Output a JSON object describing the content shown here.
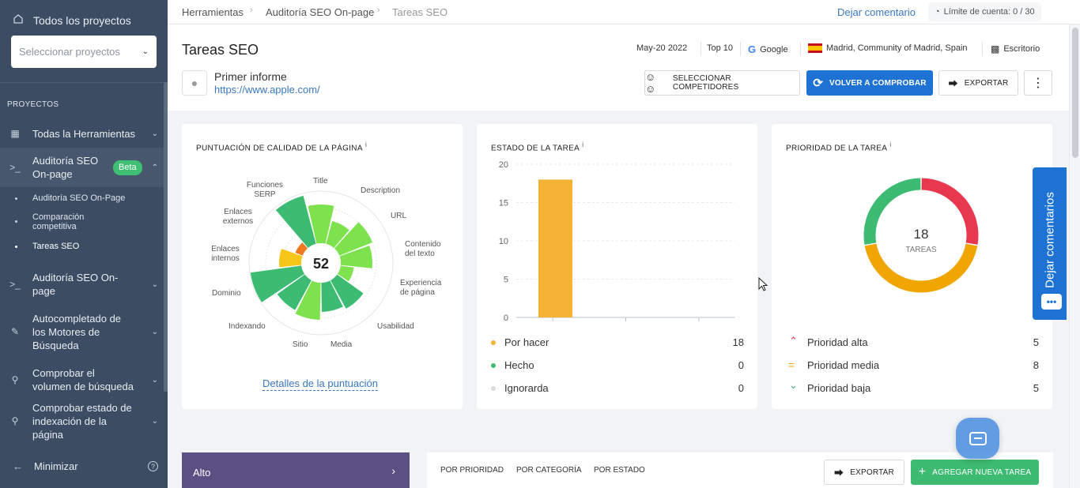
{
  "sidebar": {
    "all_projects": "Todos los proyectos",
    "select_placeholder": "Seleccionar proyectos",
    "section": "PROYECTOS",
    "items": [
      {
        "label": "Todas la Herramientas"
      },
      {
        "label": "Auditoría SEO On-page",
        "badge": "Beta"
      },
      {
        "label": "Auditoría SEO On-page"
      },
      {
        "label": "Autocompletado de los Motores de Búsqueda"
      },
      {
        "label": "Comprobar el volumen de búsqueda"
      },
      {
        "label": "Comprobar estado de indexación de la página"
      }
    ],
    "sub_items": [
      {
        "label": "Auditoría SEO On-Page"
      },
      {
        "label": "Comparación competitiva"
      },
      {
        "label": "Tareas SEO"
      }
    ],
    "minimize": "Minimizar"
  },
  "breadcrumb": [
    "Herramientas",
    "Auditoría SEO On-page",
    "Tareas SEO"
  ],
  "topbar": {
    "feedback": "Dejar comentario",
    "limit": "Límite de cuenta: 0 / 30"
  },
  "header": {
    "title": "Tareas SEO",
    "date": "May-20 2022",
    "top": "Top 10",
    "engine": "Google",
    "location": "Madrid, Community of Madrid, Spain",
    "device": "Escritorio",
    "project_name": "Primer informe",
    "project_url": "https://www.apple.com/",
    "btn_competitors": "SELECCIONAR COMPETIDORES",
    "btn_recheck": "VOLVER A COMPROBAR",
    "btn_export": "EXPORTAR"
  },
  "score_card": {
    "title": "PUNTUACIÓN DE CALIDAD DE LA PÁGINA",
    "score": "52",
    "link": "Detalles de la puntuación",
    "labels": [
      "Title",
      "Description",
      "URL",
      "Contenido del texto",
      "Experiencia de página",
      "Usabilidad",
      "Media",
      "Sitio",
      "Indexando",
      "Dominio",
      "Enlaces internos",
      "Enlaces externos",
      "Funciones SERP"
    ]
  },
  "status_card": {
    "title": "ESTADO DE LA TAREA",
    "rows": [
      {
        "label": "Por hacer",
        "value": "18",
        "color": "#f5b335"
      },
      {
        "label": "Hecho",
        "value": "0",
        "color": "#3dbb73"
      },
      {
        "label": "Ignorarda",
        "value": "0",
        "color": "#d9dce1"
      }
    ]
  },
  "priority_card": {
    "title": "PRIORIDAD DE LA TAREA",
    "total": "18",
    "total_label": "TAREAS",
    "rows": [
      {
        "label": "Prioridad alta",
        "value": "5",
        "color": "#e8384f"
      },
      {
        "label": "Prioridad media",
        "value": "8",
        "color": "#f0a500"
      },
      {
        "label": "Prioridad baja",
        "value": "5",
        "color": "#3dbb73"
      }
    ]
  },
  "chart_data": {
    "type": "bar",
    "categories": [
      "Por hacer",
      "Hecho",
      "Ignorarda"
    ],
    "values": [
      18,
      0,
      0
    ],
    "ylim": [
      0,
      20
    ],
    "yticks": [
      0,
      5,
      10,
      15,
      20
    ],
    "colors": [
      "#f5b335",
      "#3dbb73",
      "#d9dce1"
    ]
  },
  "feedback_tab": "Dejar comentarios",
  "bottom": {
    "group": "Alto",
    "tabs": [
      "POR PRIORIDAD",
      "POR CATEGORÍA",
      "POR ESTADO"
    ],
    "export": "EXPORTAR",
    "add_task": "AGREGAR NUEVA TAREA"
  }
}
